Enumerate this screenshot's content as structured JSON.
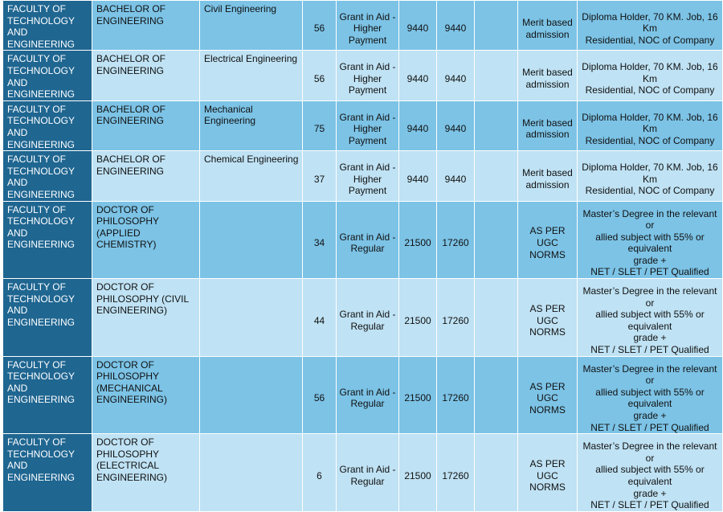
{
  "rows": [
    {
      "faculty": "FACULTY OF\nTECHNOLOGY\nAND\nENGINEERING",
      "program": "BACHELOR OF\nENGINEERING",
      "branch": "Civil Engineering",
      "intake": "56",
      "scheme": "Grant in Aid -\nHigher\nPayment",
      "fee1": "9440",
      "fee2": "9440",
      "blank": "",
      "admission": "Merit based\nadmission",
      "eligibility": "Diploma Holder, 70 KM. Job, 16 Km\nResidential, NOC of Company"
    },
    {
      "faculty": "FACULTY OF\nTECHNOLOGY\nAND\nENGINEERING",
      "program": "BACHELOR OF\nENGINEERING",
      "branch": "Electrical Engineering",
      "intake": "56",
      "scheme": "Grant in Aid -\nHigher\nPayment",
      "fee1": "9440",
      "fee2": "9440",
      "blank": "",
      "admission": "Merit based\nadmission",
      "eligibility": "Diploma Holder, 70 KM. Job, 16 Km\nResidential, NOC of Company"
    },
    {
      "faculty": "FACULTY OF\nTECHNOLOGY\nAND\nENGINEERING",
      "program": "BACHELOR OF\nENGINEERING",
      "branch": "Mechanical Engineering",
      "intake": "75",
      "scheme": "Grant in Aid -\nHigher\nPayment",
      "fee1": "9440",
      "fee2": "9440",
      "blank": "",
      "admission": "Merit based\nadmission",
      "eligibility": "Diploma Holder, 70 KM. Job, 16 Km\nResidential, NOC of Company"
    },
    {
      "faculty": "FACULTY OF\nTECHNOLOGY\nAND\nENGINEERING",
      "program": "BACHELOR OF\nENGINEERING",
      "branch": "Chemical Engineering",
      "intake": "37",
      "scheme": "Grant in Aid -\nHigher\nPayment",
      "fee1": "9440",
      "fee2": "9440",
      "blank": "",
      "admission": "Merit based\nadmission",
      "eligibility": "Diploma Holder, 70 KM. Job, 16 Km\nResidential, NOC of Company"
    },
    {
      "faculty": "FACULTY OF\nTECHNOLOGY\nAND\nENGINEERING",
      "program": "DOCTOR OF\nPHILOSOPHY (APPLIED\nCHEMISTRY)",
      "branch": "",
      "intake": "34",
      "scheme": "Grant in Aid -\nRegular",
      "fee1": "21500",
      "fee2": "17260",
      "blank": "",
      "admission": "AS PER UGC\nNORMS",
      "eligibility": "Master’s Degree in the relevant or\nallied subject with 55% or equivalent\ngrade +\nNET / SLET / PET Qualified"
    },
    {
      "faculty": "FACULTY OF\nTECHNOLOGY\nAND\nENGINEERING",
      "program": "DOCTOR OF\nPHILOSOPHY (CIVIL\nENGINEERING)",
      "branch": "",
      "intake": "44",
      "scheme": "Grant in Aid -\nRegular",
      "fee1": "21500",
      "fee2": "17260",
      "blank": "",
      "admission": "AS PER UGC\nNORMS",
      "eligibility": "Master’s Degree in the relevant or\nallied subject with 55% or equivalent\ngrade +\nNET / SLET / PET Qualified"
    },
    {
      "faculty": "FACULTY OF\nTECHNOLOGY\nAND\nENGINEERING",
      "program": "DOCTOR OF\nPHILOSOPHY\n(MECHANICAL\nENGINEERING)",
      "branch": "",
      "intake": "56",
      "scheme": "Grant in Aid -\nRegular",
      "fee1": "21500",
      "fee2": "17260",
      "blank": "",
      "admission": "AS PER UGC\nNORMS",
      "eligibility": "Master’s Degree in the relevant or\nallied subject with 55% or equivalent\ngrade +\nNET / SLET / PET Qualified"
    },
    {
      "faculty": "FACULTY OF\nTECHNOLOGY\nAND\nENGINEERING",
      "program": "DOCTOR OF\nPHILOSOPHY\n(ELECTRICAL\nENGINEERING)",
      "branch": "",
      "intake": "6",
      "scheme": "Grant in Aid -\nRegular",
      "fee1": "21500",
      "fee2": "17260",
      "blank": "",
      "admission": "AS PER UGC\nNORMS",
      "eligibility": "Master’s Degree in the relevant or\nallied subject with 55% or equivalent\ngrade +\nNET / SLET / PET Qualified"
    }
  ]
}
